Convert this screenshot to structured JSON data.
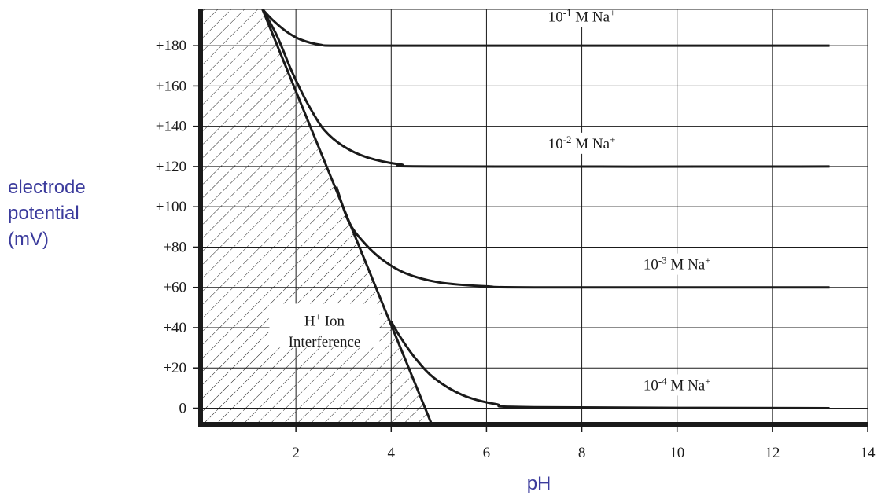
{
  "chart_data": {
    "type": "line",
    "title": "",
    "xlabel": "pH",
    "ylabel": [
      "electrode",
      "potential",
      "(mV)"
    ],
    "xlim": [
      0,
      14
    ],
    "ylim": [
      -8,
      198
    ],
    "grid": true,
    "x_ticks": [
      2,
      4,
      6,
      8,
      10,
      12,
      14
    ],
    "x_tick_labels": [
      "2",
      "4",
      "6",
      "8",
      "10",
      "12",
      "14"
    ],
    "y_ticks": [
      180,
      160,
      140,
      120,
      100,
      80,
      60,
      40,
      20,
      0
    ],
    "y_tick_labels": [
      "+180",
      "+160",
      "+140",
      "+120",
      "+100",
      "+80",
      "+60",
      "+40",
      "+20",
      "0"
    ],
    "series": [
      {
        "name": "10-1 M Na+",
        "label_parts": {
          "base": "10",
          "exp": "-1",
          "mid": " M Na",
          "sup": "+"
        },
        "label_at": {
          "x": 8,
          "y": 192
        },
        "points": [
          [
            1.3,
            198
          ],
          [
            1.5,
            193
          ],
          [
            1.8,
            187
          ],
          [
            2.1,
            183
          ],
          [
            2.5,
            180.5
          ],
          [
            3,
            180
          ],
          [
            6,
            180
          ],
          [
            13.2,
            180
          ]
        ]
      },
      {
        "name": "10-2 M Na+",
        "label_parts": {
          "base": "10",
          "exp": "-2",
          "mid": " M Na",
          "sup": "+"
        },
        "label_at": {
          "x": 8,
          "y": 129
        },
        "points": [
          [
            1.3,
            198
          ],
          [
            1.6,
            185
          ],
          [
            1.9,
            168
          ],
          [
            2.1,
            158
          ],
          [
            2.3,
            149
          ],
          [
            2.6,
            138
          ],
          [
            3,
            130
          ],
          [
            3.5,
            124.5
          ],
          [
            4.2,
            121
          ],
          [
            5,
            120
          ],
          [
            13.2,
            120
          ]
        ]
      },
      {
        "name": "10-3 M Na+",
        "label_parts": {
          "base": "10",
          "exp": "-3",
          "mid": " M Na",
          "sup": "+"
        },
        "label_at": {
          "x": 10,
          "y": 69
        },
        "points": [
          [
            2.85,
            110
          ],
          [
            3.1,
            93
          ],
          [
            3.4,
            83
          ],
          [
            3.8,
            74
          ],
          [
            4.3,
            67
          ],
          [
            5,
            62.5
          ],
          [
            6,
            60.5
          ],
          [
            7,
            60
          ],
          [
            13.2,
            60
          ]
        ]
      },
      {
        "name": "10-4 M Na+",
        "label_parts": {
          "base": "10",
          "exp": "-4",
          "mid": " M Na",
          "sup": "+"
        },
        "label_at": {
          "x": 10,
          "y": 9
        },
        "points": [
          [
            4.0,
            43
          ],
          [
            4.2,
            35
          ],
          [
            4.5,
            25
          ],
          [
            4.9,
            15
          ],
          [
            5.5,
            6.5
          ],
          [
            6.2,
            2
          ],
          [
            7,
            0.5
          ],
          [
            13.2,
            0
          ]
        ]
      }
    ],
    "interference_boundary": [
      [
        1.3,
        198
      ],
      [
        4.85,
        -8
      ]
    ],
    "annotations": [
      {
        "line1": "H",
        "line1_sup": "+",
        "line1_rest": " Ion",
        "line2": "Interference"
      }
    ]
  }
}
